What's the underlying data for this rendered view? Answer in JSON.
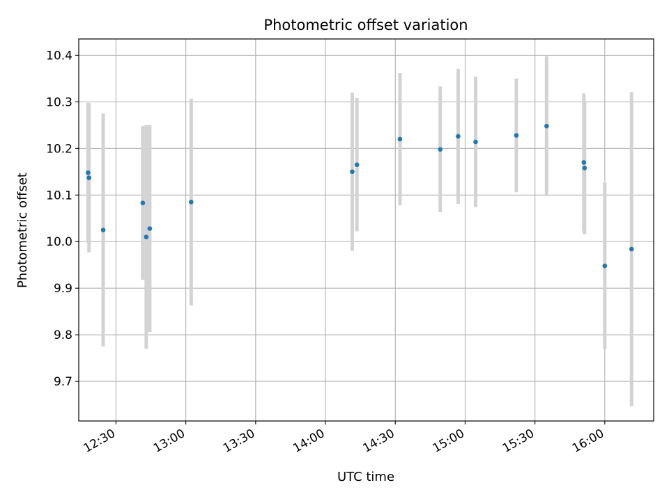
{
  "chart_data": {
    "type": "scatter",
    "title": "Photometric offset variation",
    "xlabel": "UTC time",
    "ylabel": "Photometric offset",
    "x_axis": "time",
    "xlim": [
      "12:14",
      "16:21"
    ],
    "ylim": [
      9.615,
      10.435
    ],
    "x_ticks": [
      "12:30",
      "13:00",
      "13:30",
      "14:00",
      "14:30",
      "15:00",
      "15:30",
      "16:00"
    ],
    "y_ticks": [
      9.7,
      9.8,
      9.9,
      10.0,
      10.1,
      10.2,
      10.3,
      10.4
    ],
    "y_tick_labels": [
      "9.7",
      "9.8",
      "9.9",
      "10.0",
      "10.1",
      "10.2",
      "10.3",
      "10.4"
    ],
    "grid": true,
    "marker_color": "#1f77b4",
    "errorbar_color": "#d3d3d3",
    "points": [
      {
        "x": "12:18",
        "y": 10.148,
        "err": 0.15
      },
      {
        "x": "12:18.4",
        "y": 10.137,
        "err": 0.16
      },
      {
        "x": "12:24.5",
        "y": 10.025,
        "err": 0.25
      },
      {
        "x": "12:41.5",
        "y": 10.083,
        "err": 0.165
      },
      {
        "x": "12:43",
        "y": 10.01,
        "err": 0.24
      },
      {
        "x": "12:44.5",
        "y": 10.028,
        "err": 0.222
      },
      {
        "x": "13:02.3",
        "y": 10.085,
        "err": 0.222
      },
      {
        "x": "14:11.5",
        "y": 10.15,
        "err": 0.17
      },
      {
        "x": "14:13.5",
        "y": 10.165,
        "err": 0.143
      },
      {
        "x": "14:32",
        "y": 10.22,
        "err": 0.142
      },
      {
        "x": "14:49.3",
        "y": 10.198,
        "err": 0.135
      },
      {
        "x": "14:57",
        "y": 10.226,
        "err": 0.145
      },
      {
        "x": "15:04.5",
        "y": 10.214,
        "err": 0.14
      },
      {
        "x": "15:22",
        "y": 10.228,
        "err": 0.122
      },
      {
        "x": "15:35",
        "y": 10.248,
        "err": 0.15
      },
      {
        "x": "15:51",
        "y": 10.17,
        "err": 0.148
      },
      {
        "x": "15:51.3",
        "y": 10.158,
        "err": 0.142
      },
      {
        "x": "16:00",
        "y": 9.948,
        "err": 0.178
      },
      {
        "x": "16:11.5",
        "y": 9.984,
        "err": 0.337
      }
    ]
  }
}
